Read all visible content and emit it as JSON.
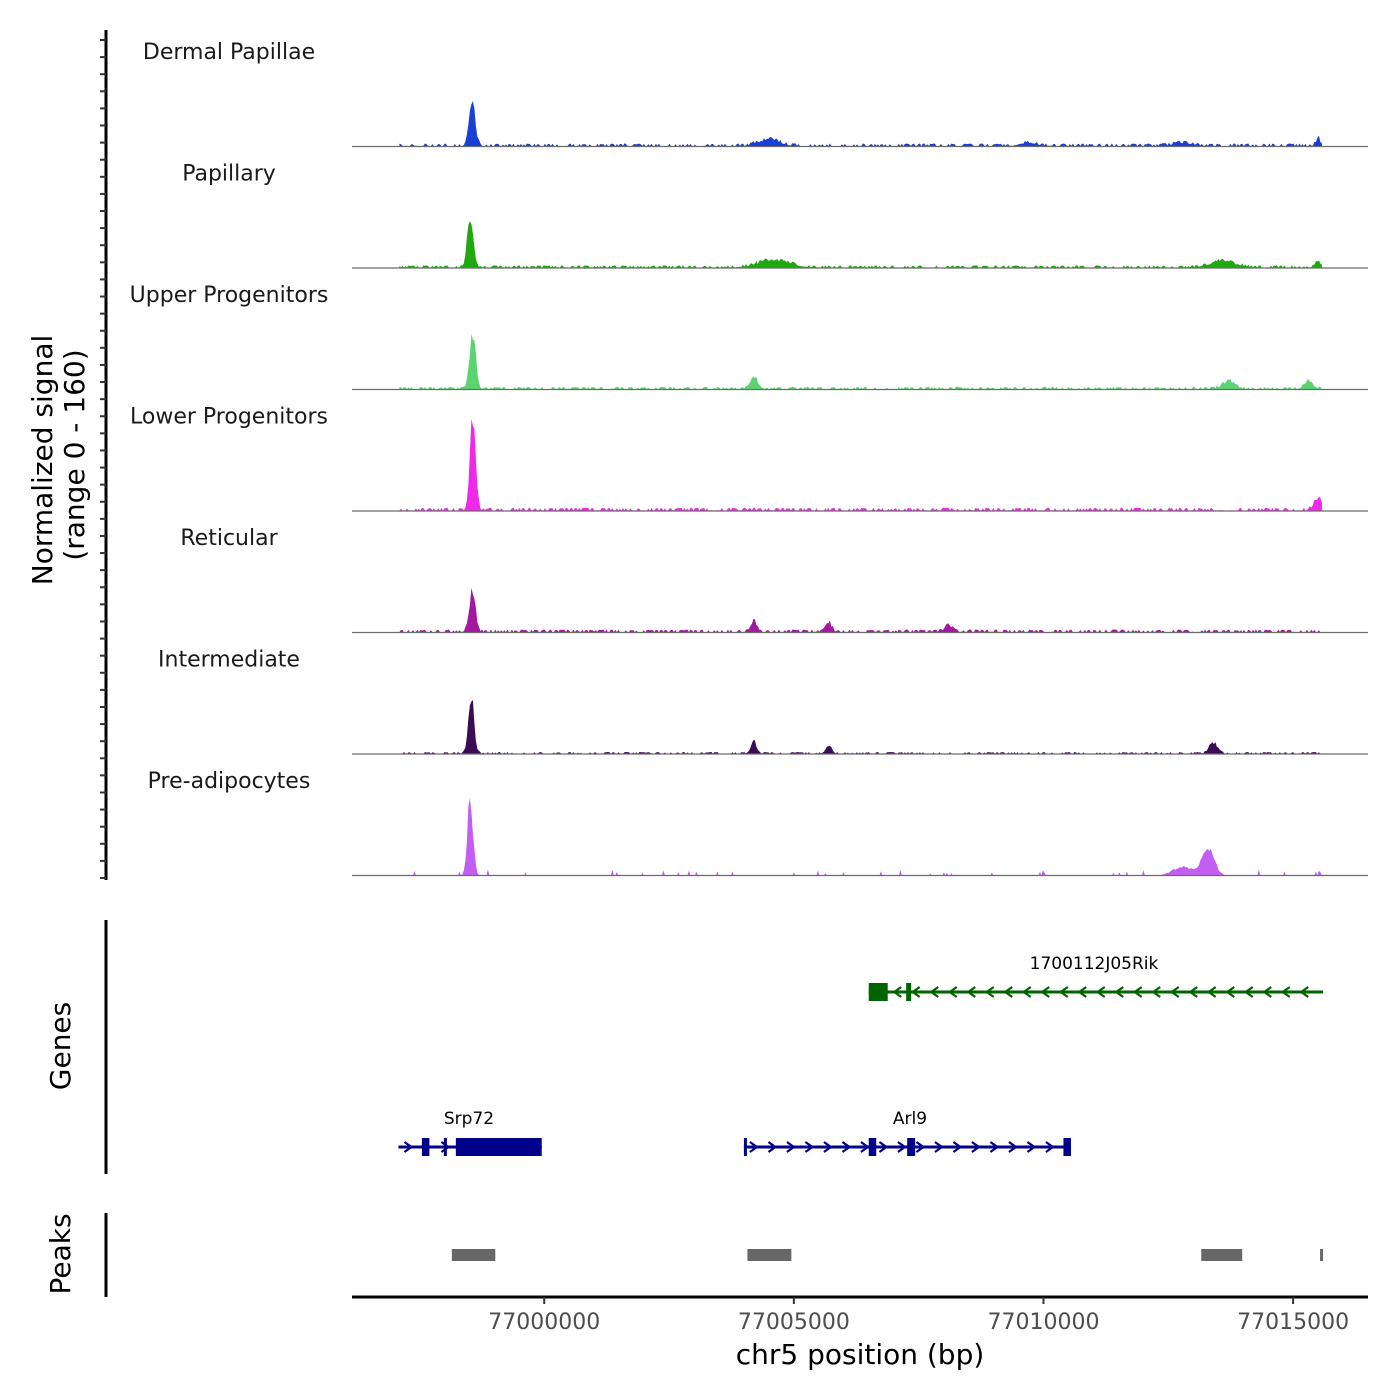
{
  "chart_data": {
    "type": "area",
    "title": "",
    "ylabel_line1": "Normalized signal",
    "ylabel_line2": "(range 0 - 160)",
    "ylim": [
      0,
      160
    ],
    "xlabel": "chr5 position (bp)",
    "xlim": [
      76996150,
      77016500
    ],
    "x_ticks": [
      77000000,
      77005000,
      77010000,
      77015000
    ],
    "x_tick_labels": [
      "77000000",
      "77005000",
      "77010000",
      "77015000"
    ],
    "signal_range": [
      76997100,
      77015600
    ],
    "tracks": [
      {
        "name": "Dermal Papillae",
        "color": "#1a3fd6",
        "peaks": [
          [
            76998560,
            150,
            60
          ],
          [
            77004500,
            24,
            200
          ],
          [
            77009700,
            12,
            150
          ],
          [
            77012800,
            10,
            200
          ],
          [
            77015500,
            28,
            40
          ]
        ],
        "background": 9,
        "seed": 11,
        "gappy": false
      },
      {
        "name": "Papillary",
        "color": "#1fa80f",
        "peaks": [
          [
            76998520,
            170,
            60
          ],
          [
            77004600,
            26,
            300
          ],
          [
            77013600,
            22,
            250
          ],
          [
            77015500,
            20,
            60
          ]
        ],
        "background": 8,
        "seed": 23,
        "gappy": false
      },
      {
        "name": "Upper Progenitors",
        "color": "#5ad470",
        "peaks": [
          [
            76998570,
            195,
            60
          ],
          [
            77004200,
            40,
            80
          ],
          [
            77013700,
            26,
            120
          ],
          [
            77015300,
            26,
            80
          ]
        ],
        "background": 8,
        "seed": 37,
        "gappy": false
      },
      {
        "name": "Lower Progenitors",
        "color": "#f028ea",
        "peaks": [
          [
            76998570,
            330,
            55
          ],
          [
            77015500,
            38,
            80
          ]
        ],
        "background": 10,
        "seed": 41,
        "gappy": false
      },
      {
        "name": "Reticular",
        "color": "#a3189f",
        "peaks": [
          [
            76998560,
            140,
            60
          ],
          [
            77004200,
            40,
            60
          ],
          [
            77005700,
            30,
            60
          ],
          [
            77008100,
            20,
            80
          ]
        ],
        "background": 9,
        "seed": 53,
        "gappy": false
      },
      {
        "name": "Intermediate",
        "color": "#3b0b55",
        "peaks": [
          [
            76998540,
            200,
            55
          ],
          [
            77004200,
            40,
            60
          ],
          [
            77005700,
            25,
            60
          ],
          [
            77013400,
            36,
            80
          ]
        ],
        "background": 6,
        "seed": 67,
        "gappy": false
      },
      {
        "name": "Pre-adipocytes",
        "color": "#c25ef2",
        "peaks": [
          [
            76998520,
            260,
            55
          ],
          [
            77013300,
            95,
            120
          ],
          [
            77012800,
            30,
            200
          ]
        ],
        "background": 12,
        "seed": 79,
        "gappy": true
      }
    ],
    "genes": [
      {
        "name": "1700112J05Rik",
        "strand": "-",
        "color": "#006400",
        "start": 77006500,
        "end": 77015600,
        "exons": [
          [
            77006500,
            77006880,
            "thick"
          ],
          [
            77007250,
            77007350,
            "thin"
          ]
        ]
      },
      {
        "name": "Srp72",
        "strand": "+",
        "color": "#00008b",
        "start": 76997080,
        "end": 76999950,
        "exons": [
          [
            76997550,
            76997700,
            "thin"
          ],
          [
            76997990,
            76998030,
            "thin"
          ],
          [
            76998230,
            76999950,
            "thick"
          ]
        ]
      },
      {
        "name": "Arl9",
        "strand": "+",
        "color": "#00008b",
        "start": 77004000,
        "end": 77010550,
        "exons": [
          [
            77004000,
            77004020,
            "thin"
          ],
          [
            77006500,
            77006650,
            "thin"
          ],
          [
            77007270,
            77007430,
            "thin"
          ],
          [
            77010400,
            77010550,
            "thin"
          ]
        ]
      }
    ],
    "peaks_track_label": "Peaks",
    "genes_track_label": "Genes",
    "peak_regions": [
      [
        76998150,
        76999020
      ],
      [
        77004070,
        77004950
      ],
      [
        77013160,
        77013980
      ],
      [
        77015540,
        77015600
      ]
    ],
    "peak_color": "#676767"
  }
}
